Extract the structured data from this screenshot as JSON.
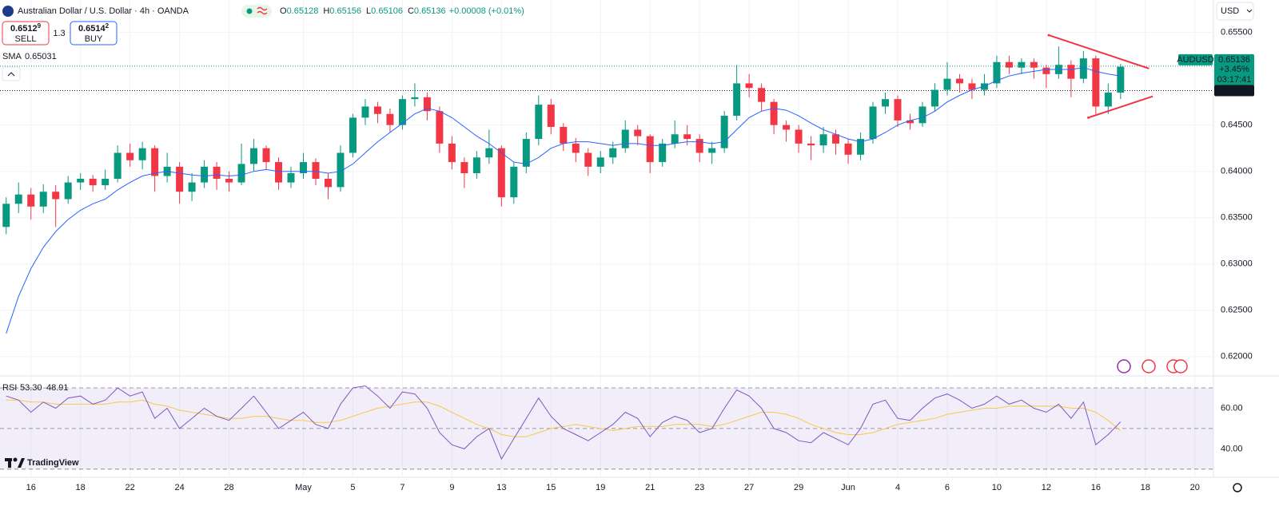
{
  "header": {
    "title": "Australian Dollar / U.S. Dollar · 4h · OANDA",
    "ohlc": [
      [
        "O",
        "0.65128"
      ],
      [
        "H",
        "0.65156"
      ],
      [
        "L",
        "0.65106"
      ],
      [
        "C",
        "0.65136"
      ]
    ],
    "change": "+0.00008 (+0.01%)",
    "sell": {
      "price": "0.6512",
      "pip": "9",
      "label": "SELL"
    },
    "buy": {
      "price": "0.6514",
      "pip": "2",
      "label": "BUY"
    },
    "spread": "1.3",
    "currency": "USD",
    "brand": "TradingView"
  },
  "chart_data": {
    "type": "candlestick",
    "grid": true,
    "up_color": "#089981",
    "down_color": "#f23645",
    "candles": [
      [
        0.634,
        0.6372,
        0.6332,
        0.6365
      ],
      [
        0.6365,
        0.6388,
        0.6355,
        0.6375
      ],
      [
        0.6375,
        0.6382,
        0.6348,
        0.6362
      ],
      [
        0.6362,
        0.6386,
        0.6355,
        0.6378
      ],
      [
        0.6378,
        0.6385,
        0.634,
        0.637
      ],
      [
        0.637,
        0.6395,
        0.6365,
        0.6388
      ],
      [
        0.6388,
        0.6398,
        0.638,
        0.6392
      ],
      [
        0.6392,
        0.6396,
        0.6378,
        0.6385
      ],
      [
        0.6385,
        0.6402,
        0.638,
        0.6392
      ],
      [
        0.6392,
        0.6428,
        0.6388,
        0.642
      ],
      [
        0.642,
        0.643,
        0.6405,
        0.6412
      ],
      [
        0.6412,
        0.6432,
        0.6402,
        0.6425
      ],
      [
        0.6425,
        0.6428,
        0.6378,
        0.6395
      ],
      [
        0.6395,
        0.642,
        0.6388,
        0.6405
      ],
      [
        0.6405,
        0.641,
        0.6365,
        0.6378
      ],
      [
        0.6378,
        0.6398,
        0.6368,
        0.6388
      ],
      [
        0.6388,
        0.6412,
        0.6382,
        0.6405
      ],
      [
        0.6405,
        0.641,
        0.638,
        0.6392
      ],
      [
        0.6392,
        0.64,
        0.6378,
        0.6388
      ],
      [
        0.6388,
        0.643,
        0.6385,
        0.6408
      ],
      [
        0.6408,
        0.6435,
        0.64,
        0.6425
      ],
      [
        0.6425,
        0.6428,
        0.6402,
        0.641
      ],
      [
        0.641,
        0.6415,
        0.638,
        0.6388
      ],
      [
        0.6388,
        0.6405,
        0.6382,
        0.6398
      ],
      [
        0.6398,
        0.642,
        0.6392,
        0.641
      ],
      [
        0.641,
        0.6414,
        0.6385,
        0.6392
      ],
      [
        0.6392,
        0.6398,
        0.637,
        0.6383
      ],
      [
        0.6383,
        0.6428,
        0.6378,
        0.642
      ],
      [
        0.642,
        0.6462,
        0.6415,
        0.6458
      ],
      [
        0.6458,
        0.6478,
        0.645,
        0.647
      ],
      [
        0.647,
        0.6475,
        0.6452,
        0.6462
      ],
      [
        0.6462,
        0.6468,
        0.6442,
        0.645
      ],
      [
        0.645,
        0.6482,
        0.6445,
        0.6478
      ],
      [
        0.6478,
        0.6495,
        0.647,
        0.648
      ],
      [
        0.648,
        0.6485,
        0.6455,
        0.6465
      ],
      [
        0.6465,
        0.647,
        0.642,
        0.643
      ],
      [
        0.643,
        0.6438,
        0.6402,
        0.641
      ],
      [
        0.641,
        0.6415,
        0.6382,
        0.6398
      ],
      [
        0.6398,
        0.6422,
        0.6392,
        0.6415
      ],
      [
        0.6415,
        0.6445,
        0.6408,
        0.6425
      ],
      [
        0.6425,
        0.6428,
        0.6362,
        0.6372
      ],
      [
        0.6372,
        0.641,
        0.6365,
        0.6405
      ],
      [
        0.6405,
        0.6442,
        0.6398,
        0.6435
      ],
      [
        0.6435,
        0.6482,
        0.6428,
        0.6472
      ],
      [
        0.6472,
        0.6478,
        0.644,
        0.6448
      ],
      [
        0.6448,
        0.6452,
        0.6422,
        0.643
      ],
      [
        0.643,
        0.6436,
        0.641,
        0.642
      ],
      [
        0.642,
        0.6425,
        0.6395,
        0.6405
      ],
      [
        0.6405,
        0.6422,
        0.6398,
        0.6415
      ],
      [
        0.6415,
        0.6432,
        0.6408,
        0.6425
      ],
      [
        0.6425,
        0.6455,
        0.642,
        0.6445
      ],
      [
        0.6445,
        0.645,
        0.6428,
        0.6438
      ],
      [
        0.6438,
        0.644,
        0.6398,
        0.641
      ],
      [
        0.641,
        0.6435,
        0.6405,
        0.643
      ],
      [
        0.643,
        0.6455,
        0.6425,
        0.644
      ],
      [
        0.644,
        0.645,
        0.6428,
        0.6435
      ],
      [
        0.6435,
        0.644,
        0.641,
        0.642
      ],
      [
        0.642,
        0.6432,
        0.6408,
        0.6425
      ],
      [
        0.6425,
        0.6465,
        0.642,
        0.646
      ],
      [
        0.646,
        0.6515,
        0.6455,
        0.6495
      ],
      [
        0.6495,
        0.6505,
        0.648,
        0.649
      ],
      [
        0.649,
        0.6495,
        0.6465,
        0.6475
      ],
      [
        0.6475,
        0.6478,
        0.644,
        0.645
      ],
      [
        0.645,
        0.6455,
        0.6432,
        0.6445
      ],
      [
        0.6445,
        0.645,
        0.642,
        0.643
      ],
      [
        0.643,
        0.6438,
        0.6412,
        0.6428
      ],
      [
        0.6428,
        0.6448,
        0.642,
        0.644
      ],
      [
        0.644,
        0.6445,
        0.6418,
        0.643
      ],
      [
        0.643,
        0.6435,
        0.6408,
        0.6418
      ],
      [
        0.6418,
        0.6442,
        0.6412,
        0.6435
      ],
      [
        0.6435,
        0.6475,
        0.643,
        0.647
      ],
      [
        0.647,
        0.6485,
        0.6462,
        0.6478
      ],
      [
        0.6478,
        0.6482,
        0.6448,
        0.6455
      ],
      [
        0.6455,
        0.6462,
        0.6445,
        0.6452
      ],
      [
        0.6452,
        0.6475,
        0.6448,
        0.647
      ],
      [
        0.647,
        0.6495,
        0.6465,
        0.6488
      ],
      [
        0.6488,
        0.6518,
        0.6482,
        0.65
      ],
      [
        0.65,
        0.6505,
        0.6485,
        0.6495
      ],
      [
        0.6495,
        0.65,
        0.6478,
        0.6488
      ],
      [
        0.6488,
        0.6505,
        0.6482,
        0.6495
      ],
      [
        0.6495,
        0.6525,
        0.649,
        0.6518
      ],
      [
        0.6518,
        0.6525,
        0.6505,
        0.6512
      ],
      [
        0.6512,
        0.6522,
        0.6505,
        0.6518
      ],
      [
        0.6518,
        0.6522,
        0.65,
        0.6512
      ],
      [
        0.6512,
        0.6515,
        0.649,
        0.6505
      ],
      [
        0.6505,
        0.6535,
        0.65,
        0.6515
      ],
      [
        0.6515,
        0.652,
        0.648,
        0.65
      ],
      [
        0.65,
        0.653,
        0.6495,
        0.6522
      ],
      [
        0.6522,
        0.6525,
        0.6462,
        0.647
      ],
      [
        0.647,
        0.6495,
        0.6462,
        0.6485
      ],
      [
        0.6485,
        0.6516,
        0.6478,
        0.6513
      ]
    ],
    "sma": {
      "name": "SMA",
      "value_label": "0.65031",
      "color": "#2962ff",
      "values": [
        0.6225,
        0.6265,
        0.6295,
        0.6318,
        0.6335,
        0.6348,
        0.6358,
        0.6365,
        0.637,
        0.638,
        0.6388,
        0.6395,
        0.6398,
        0.64,
        0.6398,
        0.6396,
        0.6395,
        0.6396,
        0.6395,
        0.6396,
        0.64,
        0.6402,
        0.64,
        0.64,
        0.64,
        0.64,
        0.6398,
        0.64,
        0.6408,
        0.642,
        0.6432,
        0.6442,
        0.6452,
        0.6462,
        0.6468,
        0.6465,
        0.6458,
        0.6448,
        0.6438,
        0.643,
        0.642,
        0.641,
        0.6408,
        0.6415,
        0.6425,
        0.643,
        0.6432,
        0.6432,
        0.643,
        0.6428,
        0.643,
        0.643,
        0.6428,
        0.6428,
        0.643,
        0.6432,
        0.6432,
        0.643,
        0.6432,
        0.6445,
        0.6458,
        0.6465,
        0.6468,
        0.6466,
        0.646,
        0.6452,
        0.6445,
        0.644,
        0.6435,
        0.6432,
        0.6435,
        0.6442,
        0.645,
        0.6455,
        0.6458,
        0.6465,
        0.6475,
        0.6482,
        0.6488,
        0.6492,
        0.6498,
        0.6503,
        0.6506,
        0.6508,
        0.651,
        0.651,
        0.651,
        0.6512,
        0.6508,
        0.6505,
        0.6503
      ]
    },
    "xlim": [
      0,
      98
    ],
    "xticks": [
      {
        "value": 2.5,
        "label": "16"
      },
      {
        "value": 6.5,
        "label": "18"
      },
      {
        "value": 10.5,
        "label": "22"
      },
      {
        "value": 14.5,
        "label": "24"
      },
      {
        "value": 18.5,
        "label": "28"
      },
      {
        "value": 24.5,
        "label": "May"
      },
      {
        "value": 28.5,
        "label": "5"
      },
      {
        "value": 32.5,
        "label": "7"
      },
      {
        "value": 36.5,
        "label": "9"
      },
      {
        "value": 40.5,
        "label": "13"
      },
      {
        "value": 44.5,
        "label": "15"
      },
      {
        "value": 48.5,
        "label": "19"
      },
      {
        "value": 52.5,
        "label": "21"
      },
      {
        "value": 56.5,
        "label": "23"
      },
      {
        "value": 60.5,
        "label": "27"
      },
      {
        "value": 64.5,
        "label": "29"
      },
      {
        "value": 68.5,
        "label": "Jun"
      },
      {
        "value": 72.5,
        "label": "4"
      },
      {
        "value": 76.5,
        "label": "6"
      },
      {
        "value": 80.5,
        "label": "10"
      },
      {
        "value": 84.5,
        "label": "12"
      },
      {
        "value": 88.5,
        "label": "16"
      },
      {
        "value": 92.5,
        "label": "18"
      },
      {
        "value": 96.5,
        "label": "20"
      }
    ],
    "ylim": [
      0.618,
      0.6585
    ],
    "yticks": [
      {
        "value": 0.62,
        "label": "0.62000"
      },
      {
        "value": 0.625,
        "label": "0.62500"
      },
      {
        "value": 0.63,
        "label": "0.63000"
      },
      {
        "value": 0.635,
        "label": "0.63500"
      },
      {
        "value": 0.64,
        "label": "0.64000"
      },
      {
        "value": 0.645,
        "label": "0.64500"
      },
      {
        "value": 0.655,
        "label": "0.65500"
      }
    ],
    "price_lines": [
      {
        "value": 0.65136,
        "label": "0.65136",
        "color": "#089981"
      },
      {
        "value": 0.64872,
        "label": "0.64872",
        "color": "#131722"
      }
    ],
    "symbol_tag": "AUDUSD",
    "price_change": "+3.45%",
    "countdown": "03:17:41",
    "trendlines": [
      {
        "x": [
          84.7,
          92.8
        ],
        "y": [
          0.6547,
          0.6511
        ],
        "color": "#f23645"
      },
      {
        "x": [
          87.9,
          93.1
        ],
        "y": [
          0.6458,
          0.6481
        ],
        "color": "#f23645"
      }
    ],
    "rsi": {
      "name": "RSI",
      "value_label": "53.30",
      "ma_value_label": "48.91",
      "color": "#7e57c2",
      "ma_color": "#f7c948",
      "ylim": [
        26,
        75.5
      ],
      "yticks": [
        {
          "value": 60,
          "label": "60.00"
        },
        {
          "value": 40,
          "label": "40.00"
        }
      ],
      "levels": [
        70,
        50,
        30
      ],
      "values": [
        66,
        64,
        58,
        63,
        60,
        65,
        66,
        62,
        64,
        70,
        66,
        68,
        55,
        60,
        50,
        55,
        60,
        56,
        54,
        60,
        66,
        58,
        50,
        54,
        58,
        52,
        50,
        62,
        70,
        71,
        66,
        60,
        68,
        67,
        60,
        48,
        42,
        40,
        46,
        50,
        35,
        45,
        55,
        65,
        56,
        50,
        47,
        44,
        48,
        52,
        58,
        55,
        46,
        53,
        56,
        54,
        48,
        50,
        60,
        69,
        66,
        60,
        50,
        48,
        44,
        43,
        48,
        45,
        42,
        50,
        62,
        64,
        55,
        54,
        60,
        65,
        67,
        64,
        60,
        62,
        66,
        62,
        64,
        60,
        58,
        62,
        55,
        63,
        42,
        47,
        53.3
      ],
      "ma_values": [
        64,
        64,
        63,
        63,
        62,
        62,
        62,
        62,
        62,
        63,
        63,
        64,
        62,
        61,
        59,
        58,
        57,
        56,
        55,
        55,
        56,
        56,
        55,
        54,
        54,
        53,
        53,
        54,
        56,
        58,
        60,
        61,
        62,
        63,
        63,
        61,
        58,
        55,
        52,
        50,
        47,
        46,
        46,
        48,
        50,
        51,
        52,
        51,
        50,
        49,
        50,
        51,
        51,
        51,
        52,
        52,
        52,
        51,
        52,
        54,
        56,
        58,
        58,
        57,
        55,
        52,
        50,
        48,
        47,
        47,
        48,
        50,
        52,
        53,
        54,
        55,
        57,
        58,
        59,
        60,
        60,
        61,
        61,
        61,
        61,
        61,
        60,
        60,
        58,
        54,
        48.91
      ]
    }
  }
}
